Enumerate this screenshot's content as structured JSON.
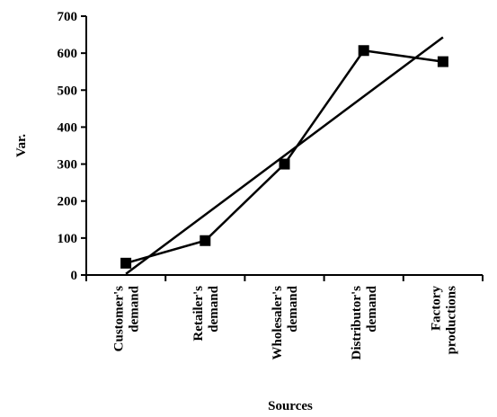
{
  "chart_data": {
    "type": "line",
    "title": "",
    "xlabel": "Sources",
    "ylabel": "Var.",
    "ylim": [
      0,
      700
    ],
    "yticks": [
      0,
      100,
      200,
      300,
      400,
      500,
      600,
      700
    ],
    "categories": [
      [
        "Customer's",
        "demand"
      ],
      [
        "Retailer's",
        "demand"
      ],
      [
        "Wholesaler's",
        "demand"
      ],
      [
        "Distributor's",
        "demand"
      ],
      [
        "Factory",
        "productions"
      ]
    ],
    "series": [
      {
        "values": [
          32,
          93,
          300,
          607,
          577
        ],
        "marker": "square",
        "color": "#000000"
      }
    ],
    "trendline": {
      "type": "linear",
      "values": [
        3,
        163,
        323,
        483,
        643
      ],
      "color": "#000000"
    },
    "grid": false,
    "legend": "none"
  }
}
